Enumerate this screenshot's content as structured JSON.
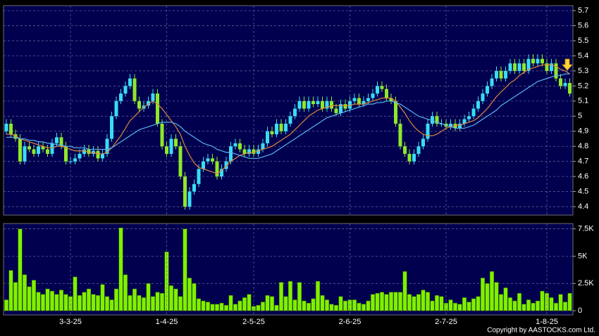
{
  "chart_data": [
    {
      "type": "candlestick",
      "open": [
        4.9,
        4.95,
        4.88,
        4.85,
        4.7,
        4.8,
        4.78,
        4.75,
        4.8,
        4.78,
        4.75,
        4.82,
        4.86,
        4.8,
        4.7,
        4.7,
        4.72,
        4.75,
        4.78,
        4.75,
        4.77,
        4.72,
        4.75,
        4.85,
        5.0,
        5.1,
        5.15,
        5.2,
        5.25,
        5.1,
        5.05,
        5.07,
        5.1,
        5.15,
        4.95,
        4.8,
        4.75,
        4.85,
        4.8,
        4.6,
        4.4,
        4.5,
        4.55,
        4.65,
        4.7,
        4.72,
        4.7,
        4.6,
        4.65,
        4.7,
        4.8,
        4.82,
        4.78,
        4.75,
        4.78,
        4.75,
        4.78,
        4.82,
        4.9,
        4.88,
        4.95,
        4.9,
        4.95,
        5.0,
        5.05,
        5.1,
        5.05,
        5.1,
        5.08,
        5.1,
        5.05,
        5.1,
        5.05,
        5.02,
        5.08,
        5.05,
        5.1,
        5.12,
        5.08,
        5.1,
        5.12,
        5.15,
        5.2,
        5.18,
        5.12,
        5.1,
        4.95,
        4.8,
        4.75,
        4.7,
        4.75,
        4.8,
        4.85,
        4.95,
        5.0,
        4.95,
        4.95,
        4.93,
        4.95,
        4.92,
        4.95,
        4.98,
        5.0,
        5.05,
        5.1,
        5.15,
        5.2,
        5.25,
        5.3,
        5.25,
        5.3,
        5.35,
        5.3,
        5.35,
        5.3,
        5.38,
        5.35,
        5.38,
        5.35,
        5.3,
        5.35,
        5.25,
        5.2,
        5.22
      ],
      "high": [
        4.98,
        4.98,
        4.91,
        4.88,
        4.83,
        4.83,
        4.81,
        4.83,
        4.83,
        4.81,
        4.85,
        4.89,
        4.89,
        4.83,
        4.73,
        4.75,
        4.78,
        4.81,
        4.81,
        4.8,
        4.8,
        4.78,
        4.88,
        5.03,
        5.13,
        5.18,
        5.23,
        5.28,
        5.28,
        5.13,
        5.1,
        5.13,
        5.18,
        5.18,
        4.98,
        4.83,
        4.88,
        4.88,
        4.83,
        4.63,
        4.53,
        4.58,
        4.68,
        4.73,
        4.75,
        4.75,
        4.73,
        4.68,
        4.73,
        4.83,
        4.85,
        4.85,
        4.81,
        4.81,
        4.81,
        4.81,
        4.85,
        4.93,
        4.93,
        4.98,
        4.98,
        4.98,
        5.03,
        5.08,
        5.13,
        5.13,
        5.13,
        5.13,
        5.13,
        5.13,
        5.13,
        5.13,
        5.08,
        5.11,
        5.11,
        5.13,
        5.15,
        5.15,
        5.13,
        5.15,
        5.18,
        5.23,
        5.23,
        5.21,
        5.15,
        5.13,
        4.98,
        4.83,
        4.78,
        4.78,
        4.83,
        4.88,
        4.98,
        5.03,
        5.03,
        4.98,
        4.98,
        4.98,
        4.98,
        4.98,
        5.01,
        5.03,
        5.08,
        5.13,
        5.18,
        5.23,
        5.28,
        5.33,
        5.33,
        5.33,
        5.38,
        5.38,
        5.38,
        5.38,
        5.41,
        5.41,
        5.41,
        5.41,
        5.38,
        5.38,
        5.38,
        5.28,
        5.25,
        5.25
      ],
      "low": [
        4.88,
        4.86,
        4.83,
        4.68,
        4.68,
        4.76,
        4.73,
        4.73,
        4.76,
        4.73,
        4.73,
        4.8,
        4.78,
        4.68,
        4.68,
        4.68,
        4.7,
        4.73,
        4.73,
        4.73,
        4.7,
        4.7,
        4.73,
        4.83,
        4.98,
        5.08,
        5.13,
        5.18,
        5.08,
        5.03,
        5.03,
        5.05,
        5.08,
        4.93,
        4.78,
        4.73,
        4.73,
        4.78,
        4.58,
        4.38,
        4.38,
        4.48,
        4.53,
        4.63,
        4.68,
        4.68,
        4.58,
        4.58,
        4.63,
        4.68,
        4.78,
        4.76,
        4.73,
        4.73,
        4.73,
        4.73,
        4.76,
        4.8,
        4.86,
        4.86,
        4.88,
        4.88,
        4.93,
        4.98,
        5.03,
        5.03,
        5.03,
        5.06,
        5.06,
        5.03,
        5.03,
        5.03,
        5.0,
        5.0,
        5.03,
        5.03,
        5.08,
        5.06,
        5.06,
        5.08,
        5.1,
        5.13,
        5.16,
        5.1,
        5.08,
        4.93,
        4.78,
        4.73,
        4.68,
        4.68,
        4.73,
        4.78,
        4.83,
        4.93,
        4.93,
        4.93,
        4.91,
        4.91,
        4.9,
        4.9,
        4.93,
        4.96,
        4.98,
        5.03,
        5.08,
        5.13,
        5.18,
        5.23,
        5.23,
        5.23,
        5.28,
        5.28,
        5.28,
        5.28,
        5.28,
        5.33,
        5.33,
        5.33,
        5.28,
        5.28,
        5.23,
        5.18,
        5.18,
        5.13
      ],
      "close": [
        4.95,
        4.88,
        4.85,
        4.7,
        4.8,
        4.78,
        4.75,
        4.8,
        4.78,
        4.75,
        4.82,
        4.86,
        4.8,
        4.7,
        4.7,
        4.72,
        4.75,
        4.78,
        4.75,
        4.77,
        4.72,
        4.75,
        4.85,
        5.0,
        5.1,
        5.15,
        5.2,
        5.25,
        5.1,
        5.05,
        5.07,
        5.1,
        5.15,
        4.95,
        4.8,
        4.75,
        4.85,
        4.8,
        4.6,
        4.4,
        4.5,
        4.55,
        4.65,
        4.7,
        4.72,
        4.7,
        4.6,
        4.65,
        4.7,
        4.8,
        4.82,
        4.78,
        4.75,
        4.78,
        4.75,
        4.78,
        4.82,
        4.9,
        4.88,
        4.95,
        4.9,
        4.95,
        5.0,
        5.05,
        5.1,
        5.05,
        5.1,
        5.08,
        5.1,
        5.05,
        5.1,
        5.05,
        5.02,
        5.08,
        5.05,
        5.1,
        5.12,
        5.08,
        5.1,
        5.12,
        5.15,
        5.2,
        5.18,
        5.12,
        5.1,
        4.95,
        4.8,
        4.75,
        4.7,
        4.75,
        4.8,
        4.85,
        4.95,
        5.0,
        4.95,
        4.95,
        4.93,
        4.95,
        4.92,
        4.95,
        4.98,
        5.0,
        5.05,
        5.1,
        5.15,
        5.2,
        5.25,
        5.3,
        5.25,
        5.3,
        5.35,
        5.3,
        5.35,
        5.3,
        5.38,
        5.35,
        5.38,
        5.35,
        5.3,
        5.35,
        5.25,
        5.2,
        5.22,
        5.15
      ],
      "up_color": "#3adcf5",
      "down_color": "#8ee82a",
      "series": [
        {
          "color": "#e0883a",
          "values": [
            4.88,
            4.88,
            4.87,
            4.85,
            4.84,
            4.83,
            4.82,
            4.81,
            4.8,
            4.79,
            4.79,
            4.8,
            4.8,
            4.79,
            4.78,
            4.77,
            4.77,
            4.77,
            4.76,
            4.76,
            4.75,
            4.75,
            4.76,
            4.79,
            4.83,
            4.87,
            4.92,
            4.97,
            5.0,
            5.03,
            5.06,
            5.08,
            5.1,
            5.08,
            5.05,
            5.01,
            4.97,
            4.93,
            4.88,
            4.8,
            4.74,
            4.69,
            4.66,
            4.65,
            4.64,
            4.63,
            4.62,
            4.64,
            4.67,
            4.7,
            4.72,
            4.74,
            4.75,
            4.76,
            4.76,
            4.77,
            4.78,
            4.79,
            4.8,
            4.82,
            4.84,
            4.86,
            4.88,
            4.91,
            4.94,
            4.97,
            5.0,
            5.02,
            5.04,
            5.05,
            5.06,
            5.07,
            5.07,
            5.07,
            5.07,
            5.07,
            5.08,
            5.08,
            5.08,
            5.09,
            5.1,
            5.11,
            5.12,
            5.12,
            5.12,
            5.1,
            5.06,
            5.02,
            4.97,
            4.93,
            4.9,
            4.88,
            4.87,
            4.87,
            4.88,
            4.9,
            4.92,
            4.93,
            4.94,
            4.94,
            4.95,
            4.96,
            4.97,
            4.99,
            5.02,
            5.05,
            5.09,
            5.13,
            5.16,
            5.19,
            5.22,
            5.24,
            5.27,
            5.29,
            5.31,
            5.32,
            5.33,
            5.34,
            5.34,
            5.34,
            5.33,
            5.31,
            5.3,
            5.28
          ]
        },
        {
          "color": "#5ab4f0",
          "values": [
            4.86,
            4.86,
            4.86,
            4.85,
            4.85,
            4.84,
            4.84,
            4.83,
            4.83,
            4.82,
            4.82,
            4.81,
            4.81,
            4.8,
            4.8,
            4.79,
            4.79,
            4.79,
            4.78,
            4.78,
            4.78,
            4.78,
            4.78,
            4.79,
            4.81,
            4.83,
            4.85,
            4.87,
            4.89,
            4.91,
            4.92,
            4.93,
            4.94,
            4.95,
            4.96,
            4.96,
            4.96,
            4.95,
            4.93,
            4.9,
            4.88,
            4.86,
            4.84,
            4.82,
            4.81,
            4.8,
            4.78,
            4.77,
            4.76,
            4.76,
            4.75,
            4.74,
            4.73,
            4.72,
            4.72,
            4.72,
            4.73,
            4.74,
            4.75,
            4.77,
            4.79,
            4.81,
            4.83,
            4.85,
            4.87,
            4.89,
            4.91,
            4.93,
            4.95,
            4.97,
            4.99,
            5.0,
            5.01,
            5.02,
            5.03,
            5.04,
            5.05,
            5.06,
            5.07,
            5.08,
            5.08,
            5.09,
            5.09,
            5.1,
            5.1,
            5.09,
            5.08,
            5.06,
            5.04,
            5.02,
            5.0,
            4.99,
            4.98,
            4.97,
            4.96,
            4.95,
            4.94,
            4.93,
            4.92,
            4.92,
            4.92,
            4.93,
            4.94,
            4.96,
            4.98,
            5.0,
            5.02,
            5.04,
            5.07,
            5.09,
            5.11,
            5.13,
            5.15,
            5.17,
            5.19,
            5.21,
            5.23,
            5.24,
            5.25,
            5.26,
            5.27,
            5.27,
            5.28,
            5.28
          ]
        }
      ],
      "ylim": [
        4.344,
        5.733
      ],
      "yticks": [
        4.4,
        4.5,
        4.6,
        4.7,
        4.8,
        4.9,
        5,
        5.1,
        5.2,
        5.3,
        5.4,
        5.5,
        5.6,
        5.7
      ],
      "grid": true
    },
    {
      "type": "bar",
      "categories": [
        null,
        null,
        null,
        null,
        null,
        null,
        null,
        null,
        null,
        null,
        null,
        null,
        null,
        null,
        "3-3-25",
        null,
        null,
        null,
        null,
        null,
        null,
        null,
        null,
        null,
        null,
        null,
        null,
        null,
        null,
        null,
        null,
        null,
        null,
        null,
        null,
        "1-4-25",
        null,
        null,
        null,
        null,
        null,
        null,
        null,
        null,
        null,
        null,
        null,
        null,
        null,
        null,
        null,
        null,
        null,
        null,
        "2-5-25",
        null,
        null,
        null,
        null,
        null,
        null,
        null,
        null,
        null,
        null,
        null,
        null,
        null,
        null,
        null,
        null,
        null,
        null,
        null,
        null,
        "2-6-25",
        null,
        null,
        null,
        null,
        null,
        null,
        null,
        null,
        null,
        null,
        null,
        null,
        null,
        null,
        null,
        null,
        null,
        null,
        null,
        null,
        "2-7-25",
        null,
        null,
        null,
        null,
        null,
        null,
        null,
        null,
        null,
        null,
        null,
        null,
        null,
        null,
        null,
        null,
        null,
        null,
        null,
        null,
        null,
        "1-8-25",
        null,
        null,
        null,
        null,
        null
      ],
      "values": [
        1000,
        3700,
        2600,
        7500,
        3300,
        2200,
        2800,
        1700,
        1500,
        2000,
        1800,
        1500,
        1900,
        1500,
        1300,
        3100,
        1400,
        1700,
        2000,
        1500,
        1400,
        2400,
        1300,
        1000,
        2000,
        7600,
        3300,
        1400,
        2000,
        1400,
        1200,
        2500,
        1300,
        1700,
        1600,
        5400,
        2300,
        2000,
        1300,
        7500,
        3000,
        2500,
        1100,
        900,
        800,
        600,
        600,
        700,
        500,
        1400,
        600,
        900,
        1200,
        1500,
        400,
        500,
        800,
        1400,
        1300,
        500,
        2600,
        1300,
        2700,
        1000,
        2600,
        900,
        700,
        1100,
        2700,
        1400,
        1000,
        600,
        500,
        1300,
        900,
        1000,
        1000,
        700,
        600,
        900,
        1500,
        1600,
        1700,
        1500,
        1700,
        1700,
        1700,
        3600,
        1500,
        1300,
        1500,
        1900,
        1700,
        900,
        1400,
        1300,
        700,
        1000,
        700,
        600,
        1200,
        800,
        1100,
        1300,
        3000,
        2500,
        3600,
        2600,
        1500,
        2100,
        1200,
        900,
        1600,
        600,
        1000,
        700,
        900,
        1800,
        1600,
        1200,
        700,
        1500,
        800,
        1600
      ],
      "color": "#80f000",
      "ylim": [
        0,
        7800
      ],
      "yticks": [
        0,
        {
          "value": 2500,
          "label": "2.5K"
        },
        {
          "value": 5000,
          "label": "5K"
        },
        {
          "value": 7500,
          "label": "7.5K"
        }
      ],
      "grid": true
    }
  ],
  "footer": {
    "copyright": "Copyright by AASTOCKS.com Ltd."
  }
}
